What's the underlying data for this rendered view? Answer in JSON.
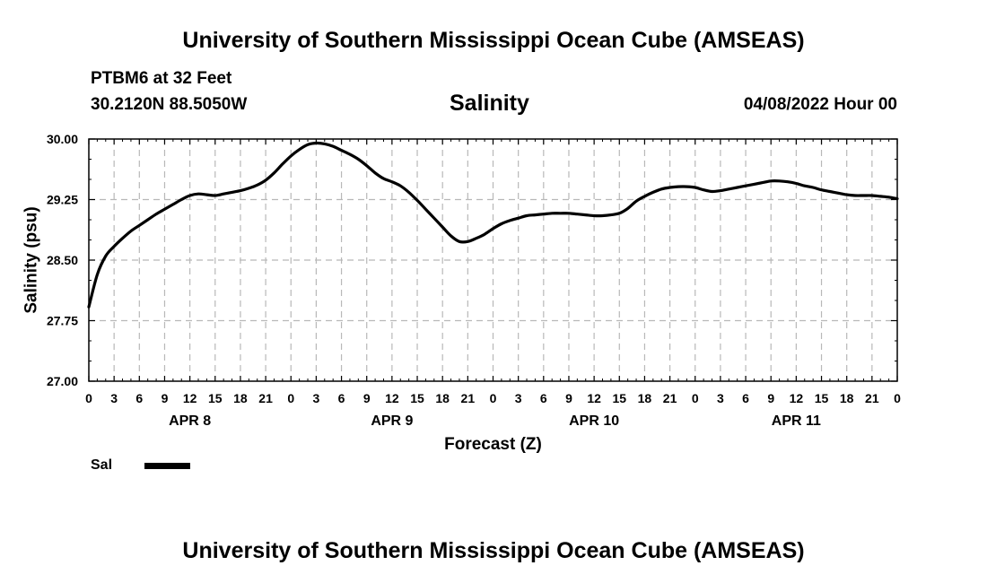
{
  "header": {
    "title_top": "University of Southern Mississippi Ocean Cube (AMSEAS)",
    "station": "PTBM6 at 32 Feet",
    "coords": "30.2120N  88.5050W",
    "chart_title": "Salinity",
    "datetime": "04/08/2022 Hour 00"
  },
  "footer": {
    "title_bottom": "University of Southern Mississippi Ocean Cube (AMSEAS)"
  },
  "legend": {
    "label": "Sal",
    "color": "#000000"
  },
  "chart_data": {
    "type": "line",
    "title": "Salinity",
    "xlabel": "Forecast (Z)",
    "ylabel": "Salinity (psu)",
    "ylim": [
      27.0,
      30.0
    ],
    "yticks": [
      "27.00",
      "27.75",
      "28.50",
      "29.25",
      "30.00"
    ],
    "xlim": [
      0,
      96
    ],
    "xticks": [
      "0",
      "3",
      "6",
      "9",
      "12",
      "15",
      "18",
      "21",
      "0",
      "3",
      "6",
      "9",
      "12",
      "15",
      "18",
      "21",
      "0",
      "3",
      "6",
      "9",
      "12",
      "15",
      "18",
      "21",
      "0",
      "3",
      "6",
      "9",
      "12",
      "15",
      "18",
      "21",
      "0"
    ],
    "day_labels": [
      {
        "label": "APR 8",
        "hour": 12
      },
      {
        "label": "APR 9",
        "hour": 36
      },
      {
        "label": "APR 10",
        "hour": 60
      },
      {
        "label": "APR 11",
        "hour": 84
      }
    ],
    "grid": true,
    "series": [
      {
        "name": "Sal",
        "color": "#000000",
        "x": [
          0,
          1,
          2,
          3,
          4,
          5,
          6,
          7,
          8,
          9,
          10,
          11,
          12,
          13,
          14,
          15,
          16,
          17,
          18,
          19,
          20,
          21,
          22,
          23,
          24,
          25,
          26,
          27,
          28,
          29,
          30,
          31,
          32,
          33,
          34,
          35,
          36,
          37,
          38,
          39,
          40,
          41,
          42,
          43,
          44,
          45,
          46,
          47,
          48,
          49,
          50,
          51,
          52,
          53,
          54,
          55,
          56,
          57,
          58,
          59,
          60,
          61,
          62,
          63,
          64,
          65,
          66,
          67,
          68,
          69,
          70,
          71,
          72,
          73,
          74,
          75,
          76,
          77,
          78,
          79,
          80,
          81,
          82,
          83,
          84,
          85,
          86,
          87,
          88,
          89,
          90,
          91,
          92,
          93,
          94,
          95,
          96
        ],
        "values": [
          27.92,
          28.32,
          28.55,
          28.67,
          28.77,
          28.86,
          28.93,
          29.0,
          29.07,
          29.13,
          29.19,
          29.25,
          29.3,
          29.32,
          29.31,
          29.3,
          29.32,
          29.34,
          29.36,
          29.39,
          29.43,
          29.49,
          29.58,
          29.69,
          29.79,
          29.87,
          29.93,
          29.95,
          29.94,
          29.91,
          29.86,
          29.81,
          29.75,
          29.67,
          29.58,
          29.51,
          29.47,
          29.42,
          29.34,
          29.24,
          29.13,
          29.02,
          28.91,
          28.8,
          28.73,
          28.73,
          28.77,
          28.82,
          28.89,
          28.95,
          28.99,
          29.02,
          29.05,
          29.06,
          29.07,
          29.08,
          29.08,
          29.08,
          29.07,
          29.06,
          29.05,
          29.05,
          29.06,
          29.08,
          29.14,
          29.23,
          29.29,
          29.34,
          29.38,
          29.4,
          29.41,
          29.41,
          29.4,
          29.37,
          29.35,
          29.36,
          29.38,
          29.4,
          29.42,
          29.44,
          29.46,
          29.48,
          29.48,
          29.47,
          29.45,
          29.42,
          29.4,
          29.37,
          29.35,
          29.33,
          29.31,
          29.3,
          29.3,
          29.3,
          29.29,
          29.28,
          29.26
        ]
      }
    ]
  }
}
